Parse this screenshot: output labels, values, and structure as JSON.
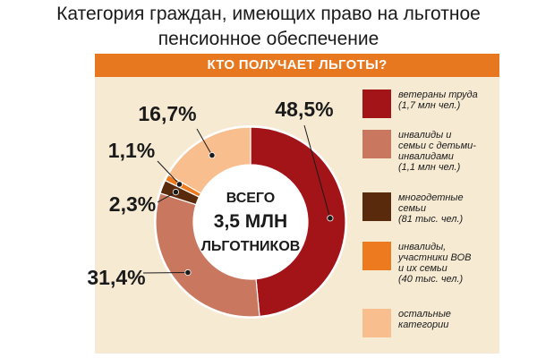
{
  "page_title": {
    "line1": "Категория граждан, имеющих право на льготное",
    "line2": "пенсионное обеспечение"
  },
  "panel": {
    "header": "КТО ПОЛУЧАЕТ ЛЬГОТЫ?"
  },
  "chart_data": {
    "type": "pie",
    "title": "КТО ПОЛУЧАЕТ ЛЬГОТЫ?",
    "center_text": [
      "ВСЕГО",
      "3,5 МЛН",
      "ЛЬГОТНИКОВ"
    ],
    "slices": [
      {
        "label_lines": [
          "ветераны труда"
        ],
        "sub": "(1,7 млн чел.)",
        "value": 48.5,
        "value_label": "48,5%",
        "color": "#a31419"
      },
      {
        "label_lines": [
          "инвалиды и",
          "семьи с детьми-",
          "инвалидами"
        ],
        "sub": "(1,1 млн чел.)",
        "value": 31.4,
        "value_label": "31,4%",
        "color": "#c9775e"
      },
      {
        "label_lines": [
          "многодетные",
          "семьи"
        ],
        "sub": "(81 тыс. чел.)",
        "value": 2.3,
        "value_label": "2,3%",
        "color": "#5a2a0c"
      },
      {
        "label_lines": [
          "инвалиды,",
          "участники ВОВ",
          "и их семьи"
        ],
        "sub": "(40 тыс. чел.)",
        "value": 1.1,
        "value_label": "1,1%",
        "color": "#ee7a20"
      },
      {
        "label_lines": [
          "остальные",
          "категории"
        ],
        "sub": "",
        "value": 16.7,
        "value_label": "16,7%",
        "color": "#f8be8e"
      }
    ]
  }
}
